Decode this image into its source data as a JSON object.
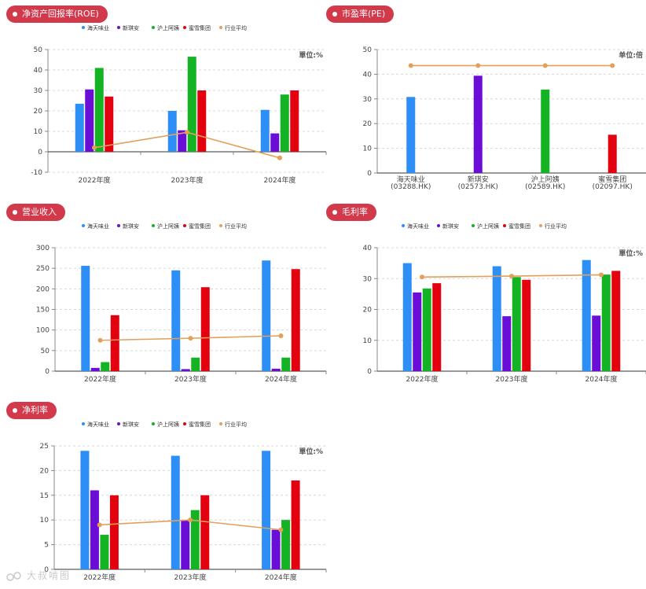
{
  "colors": {
    "pill": "#d23a4c",
    "series": [
      "#2d8ef5",
      "#6a0dd6",
      "#13b324",
      "#e3000f"
    ],
    "avg": "#e2a05a"
  },
  "legend": [
    "海天味业",
    "新琪安",
    "沪上阿姨",
    "蜜雪集团",
    "行业平均"
  ],
  "watermark": "大叔啃图",
  "chart_data": [
    {
      "id": "roe",
      "type": "bar",
      "title": "净资产回报率(ROE)",
      "unit": "單位:%",
      "categories": [
        "2022年度",
        "2023年度",
        "2024年度"
      ],
      "series": [
        {
          "name": "海天味业",
          "values": [
            23.5,
            20,
            20.5
          ]
        },
        {
          "name": "新琪安",
          "values": [
            30.5,
            10.5,
            9
          ]
        },
        {
          "name": "沪上阿姨",
          "values": [
            41,
            46.5,
            28
          ]
        },
        {
          "name": "蜜雪集团",
          "values": [
            27,
            30,
            30
          ]
        }
      ],
      "line": {
        "name": "行业平均",
        "values": [
          2,
          9.5,
          -3
        ]
      },
      "ylim": [
        -10,
        50
      ],
      "yticks": [
        -10,
        0,
        10,
        20,
        30,
        40,
        50
      ]
    },
    {
      "id": "pe",
      "type": "bar",
      "title": "市盈率(PE)",
      "unit": "单位:倍",
      "categories": [
        "海天味业\n(03288.HK)",
        "新琪安\n(02573.HK)",
        "沪上阿姨\n(02589.HK)",
        "蜜雪集团\n(02097.HK)"
      ],
      "values": [
        30.8,
        39.4,
        33.8,
        15.5
      ],
      "avg_line": {
        "name": "行业平均",
        "value": 43.5
      },
      "ylim": [
        0,
        50
      ],
      "yticks": [
        0,
        10,
        20,
        30,
        40,
        50
      ]
    },
    {
      "id": "revenue",
      "type": "bar",
      "title": "营业收入",
      "unit": "",
      "categories": [
        "2022年度",
        "2023年度",
        "2024年度"
      ],
      "series": [
        {
          "name": "海天味业",
          "values": [
            256,
            245,
            269
          ]
        },
        {
          "name": "新琪安",
          "values": [
            8,
            5,
            6
          ]
        },
        {
          "name": "沪上阿姨",
          "values": [
            22,
            33,
            33
          ]
        },
        {
          "name": "蜜雪集团",
          "values": [
            136,
            204,
            248
          ]
        }
      ],
      "line": {
        "name": "行业平均",
        "values": [
          75,
          80,
          86
        ]
      },
      "ylim": [
        0,
        300
      ],
      "yticks": [
        0,
        50,
        100,
        150,
        200,
        250,
        300
      ]
    },
    {
      "id": "gross_margin",
      "type": "bar",
      "title": "毛利率",
      "unit": "單位:%",
      "categories": [
        "2022年度",
        "2023年度",
        "2024年度"
      ],
      "series": [
        {
          "name": "海天味业",
          "values": [
            35,
            34,
            36
          ]
        },
        {
          "name": "新琪安",
          "values": [
            25.5,
            17.8,
            18
          ]
        },
        {
          "name": "沪上阿姨",
          "values": [
            26.8,
            30.5,
            31.3
          ]
        },
        {
          "name": "蜜雪集团",
          "values": [
            28.5,
            29.6,
            32.5
          ]
        }
      ],
      "line": {
        "name": "行业平均",
        "values": [
          30.5,
          30.8,
          31.2
        ]
      },
      "ylim": [
        0,
        40
      ],
      "yticks": [
        0,
        10,
        20,
        30,
        40
      ]
    },
    {
      "id": "net_margin",
      "type": "bar",
      "title": "净利率",
      "unit": "單位:%",
      "categories": [
        "2022年度",
        "2023年度",
        "2024年度"
      ],
      "series": [
        {
          "name": "海天味业",
          "values": [
            24,
            23,
            24
          ]
        },
        {
          "name": "新琪安",
          "values": [
            16,
            10,
            8
          ]
        },
        {
          "name": "沪上阿姨",
          "values": [
            7,
            12,
            10
          ]
        },
        {
          "name": "蜜雪集团",
          "values": [
            15,
            15,
            18
          ]
        }
      ],
      "line": {
        "name": "行业平均",
        "values": [
          9,
          10,
          8
        ]
      },
      "ylim": [
        0,
        25
      ],
      "yticks": [
        0,
        5,
        10,
        15,
        20,
        25
      ]
    }
  ]
}
